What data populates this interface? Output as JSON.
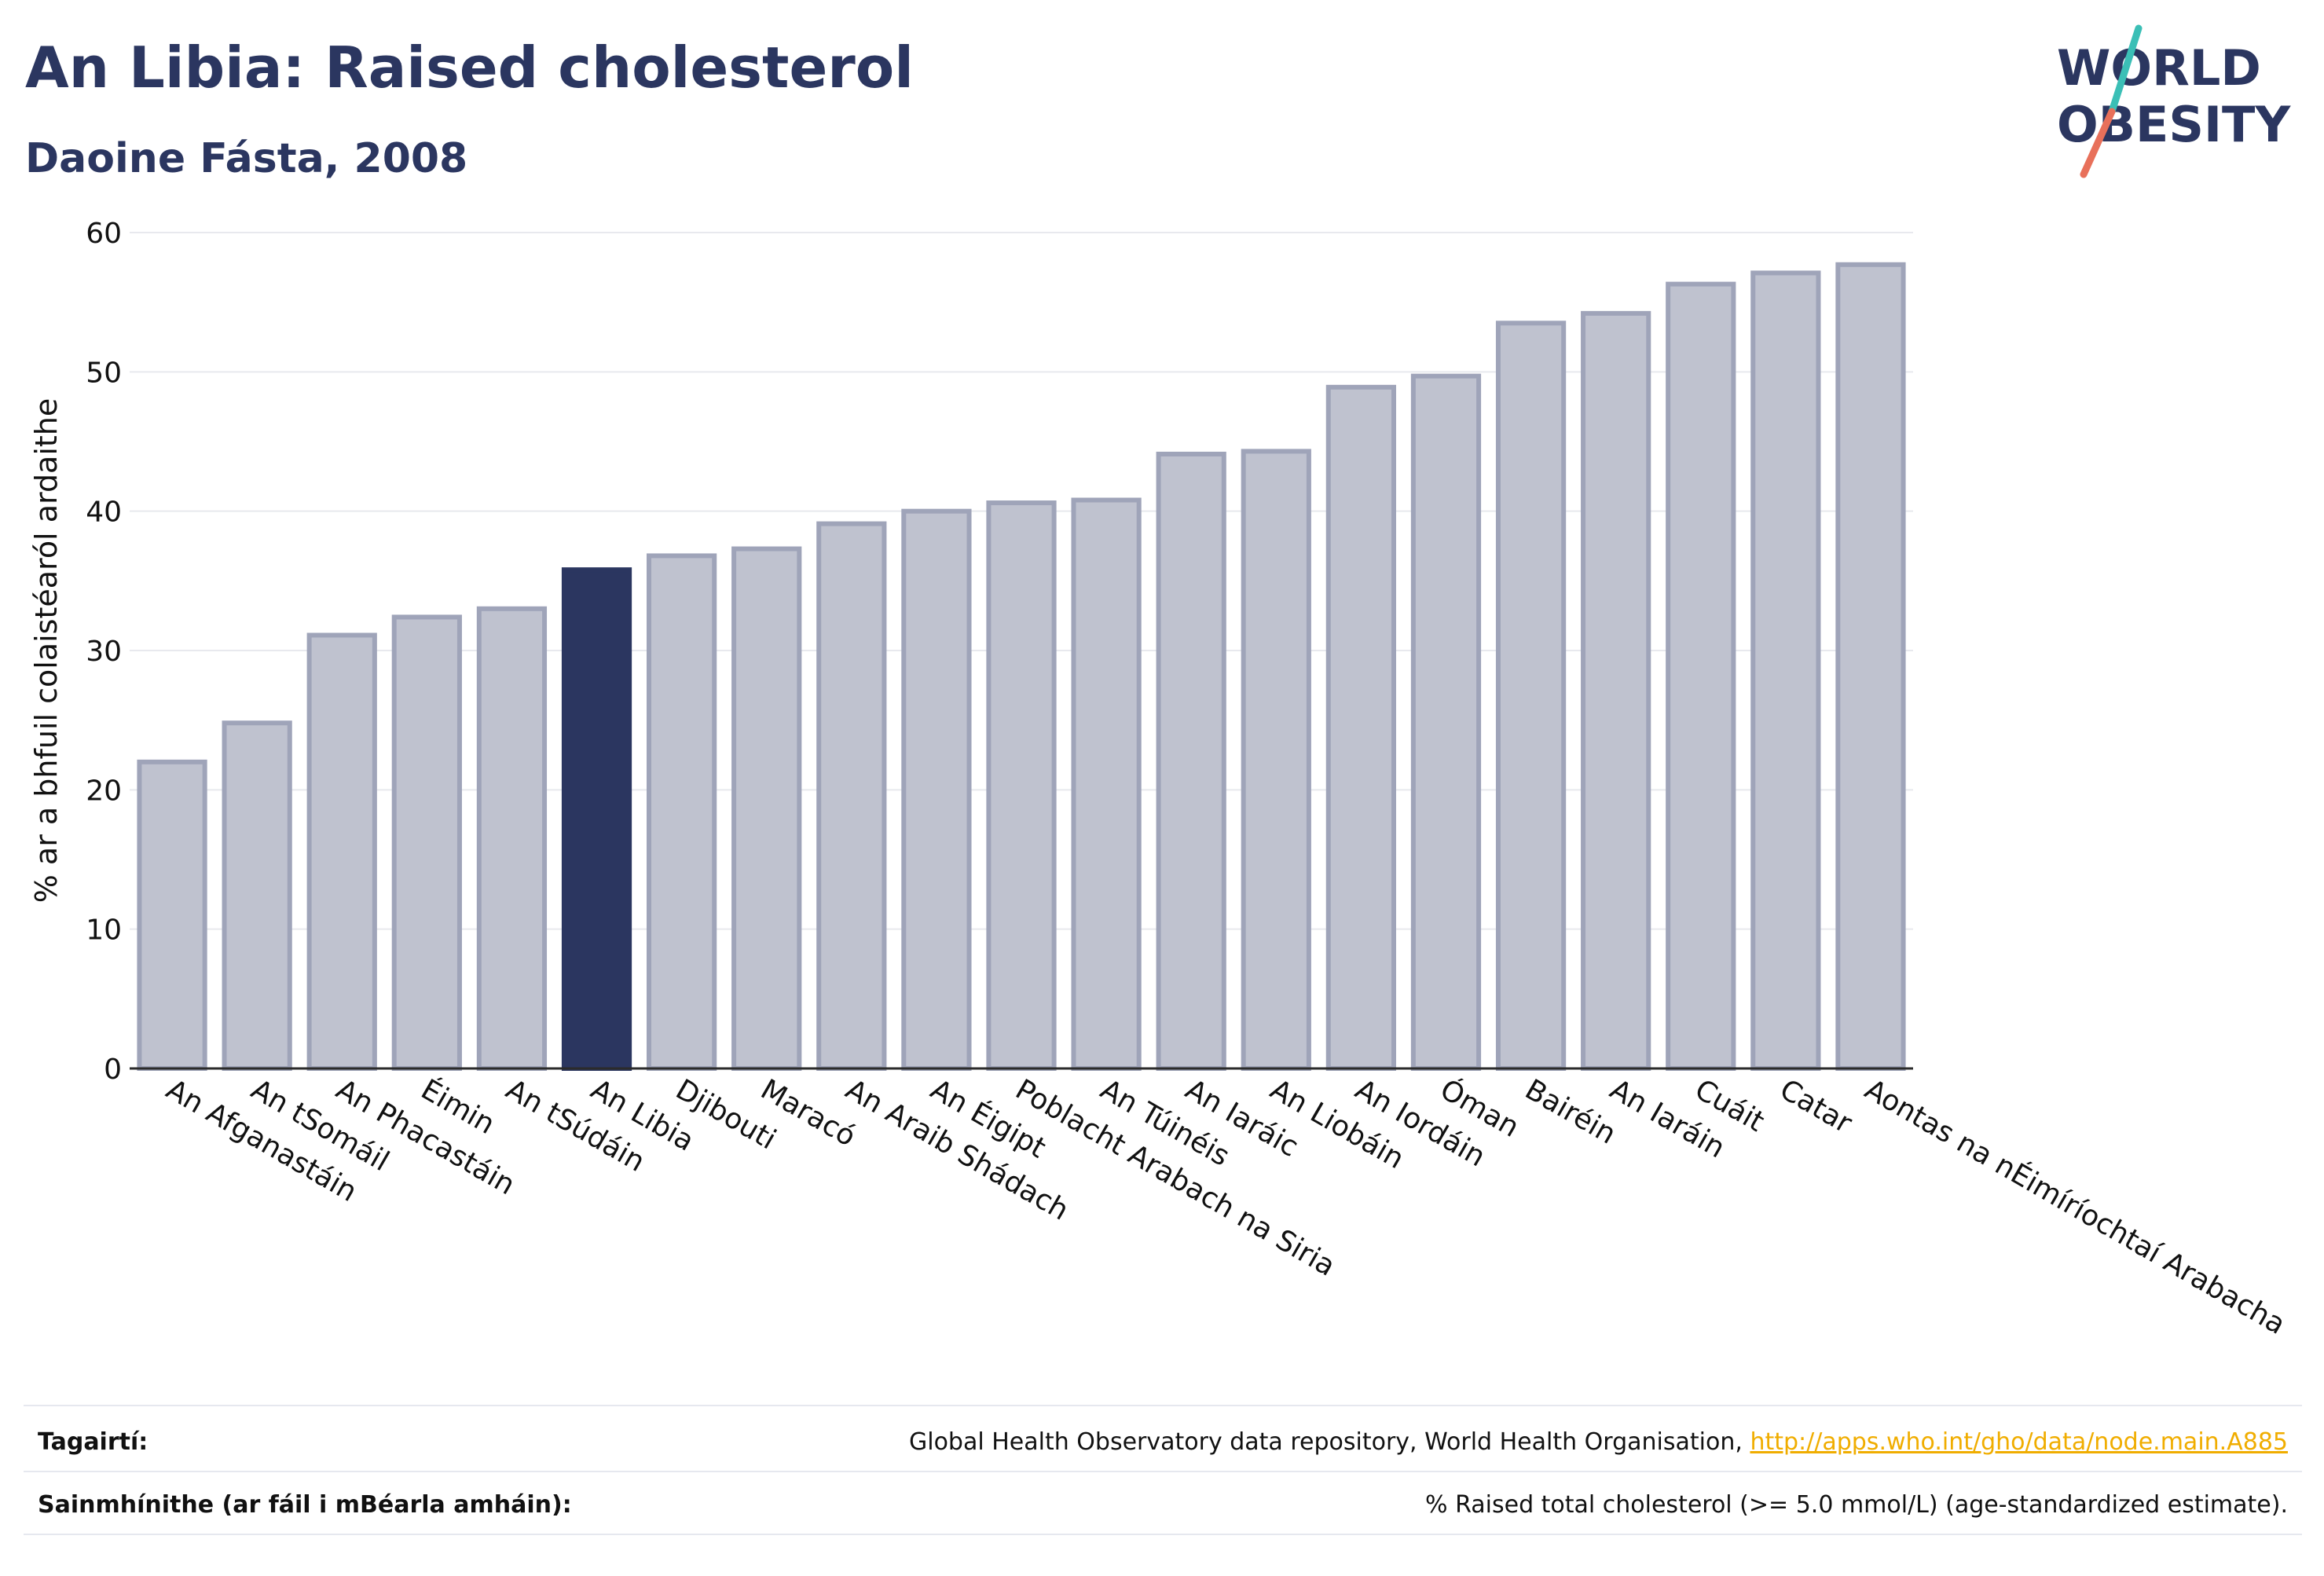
{
  "header": {
    "title": "An Libia: Raised cholesterol",
    "subtitle": "Daoine Fásta, 2008"
  },
  "logo": {
    "line1": "WORLD",
    "line2": "OBESITY",
    "colors": {
      "text": "#2b3660",
      "slash_top": "#3bbfb6",
      "slash_bottom": "#e8705a"
    }
  },
  "chart_data": {
    "type": "bar",
    "ylabel": "% ar a bhfuil colaistéaról ardaithe",
    "ylim": [
      0,
      60
    ],
    "yticks": [
      0,
      10,
      20,
      30,
      40,
      50,
      60
    ],
    "grid": true,
    "highlight": "An Libia",
    "colors": {
      "bar": "#bfc2cf",
      "bar_edge": "#9fa4b9",
      "highlight": "#2b3660",
      "grid": "#e8e9ee"
    },
    "categories": [
      "An Afganastáin",
      "An tSomáil",
      "An Phacastáin",
      "Éimin",
      "An tSúdáin",
      "An Libia",
      "Djibouti",
      "Maracó",
      "An Araib Shádach",
      "An Éigipt",
      "Poblacht Arabach na Siria",
      "An Túinéis",
      "An Iaráic",
      "An Liobáin",
      "An Iordáin",
      "Óman",
      "Bairéin",
      "An Iaráin",
      "Cuáit",
      "Catar",
      "Aontas na nÉimíríochtaí Arabacha"
    ],
    "values": [
      22.0,
      24.8,
      31.1,
      32.4,
      33.0,
      35.8,
      36.8,
      37.3,
      39.1,
      40.0,
      40.6,
      40.8,
      44.1,
      44.3,
      48.9,
      49.7,
      53.5,
      54.2,
      56.3,
      57.1,
      57.7
    ]
  },
  "footer": {
    "references_label": "Tagairtí:",
    "references_text": "Global Health Observatory data repository, World Health Organisation,",
    "references_link": "http://apps.who.int/gho/data/node.main.A885",
    "definitions_label": "Sainmhínithe (ar fáil i mBéarla amháin):",
    "definitions_text": "% Raised total cholesterol (>= 5.0 mmol/L) (age-standardized estimate)."
  }
}
